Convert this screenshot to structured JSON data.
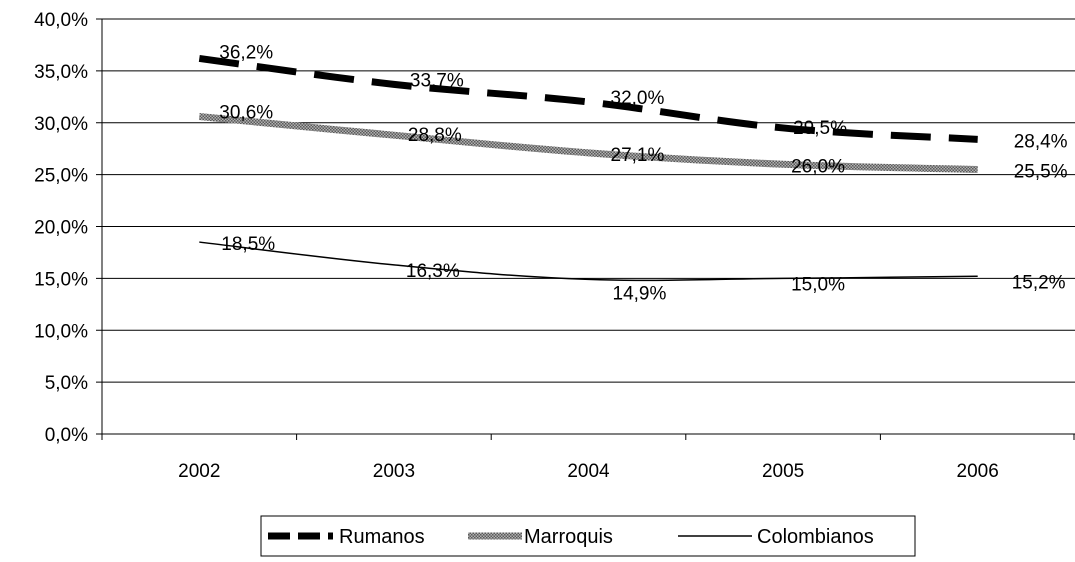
{
  "chart_data": {
    "type": "line",
    "categories": [
      "2002",
      "2003",
      "2004",
      "2005",
      "2006"
    ],
    "series": [
      {
        "name": "Rumanos",
        "values": [
          36.2,
          33.7,
          32.0,
          29.5,
          28.4
        ],
        "labels": [
          "36,2%",
          "33,7%",
          "32,0%",
          "29,5%",
          "28,4%"
        ],
        "style": "dashed-thick",
        "color": "#000000"
      },
      {
        "name": "Marroquis",
        "values": [
          30.6,
          28.8,
          27.1,
          26.0,
          25.5
        ],
        "labels": [
          "30,6%",
          "28,8%",
          "27,1%",
          "26,0%",
          "25,5%"
        ],
        "style": "hatched-thick",
        "color": "#7f7f7f"
      },
      {
        "name": "Colombianos",
        "values": [
          18.5,
          16.3,
          14.9,
          15.0,
          15.2
        ],
        "labels": [
          "18,5%",
          "16,3%",
          "14,9%",
          "15,0%",
          "15,2%"
        ],
        "style": "solid-thin",
        "color": "#000000"
      }
    ],
    "ylim": [
      0,
      40
    ],
    "yticks": [
      "0,0%",
      "5,0%",
      "10,0%",
      "15,0%",
      "20,0%",
      "25,0%",
      "30,0%",
      "35,0%",
      "40,0%"
    ],
    "grid": "horizontal",
    "legend": "bottom",
    "title": "",
    "xlabel": "",
    "ylabel": ""
  }
}
